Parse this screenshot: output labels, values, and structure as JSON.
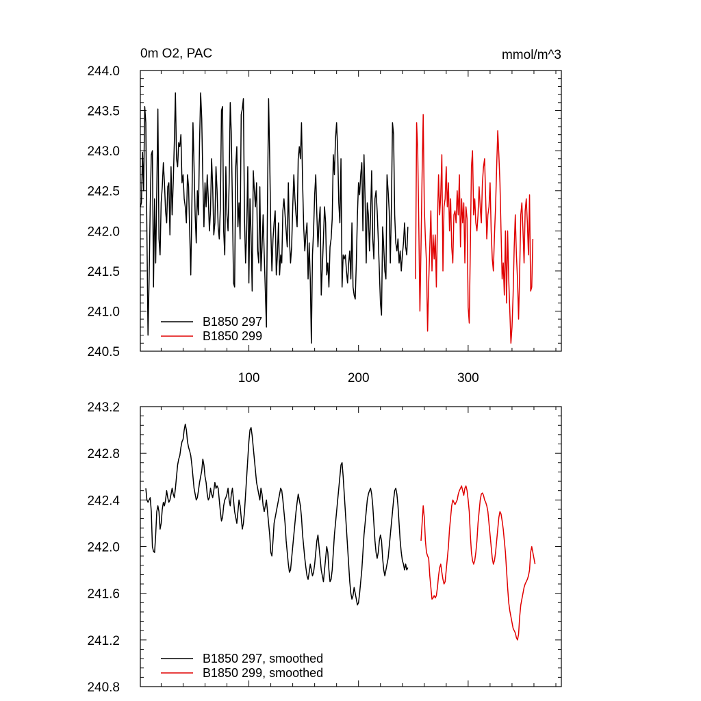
{
  "chart_data": [
    {
      "type": "line",
      "title": "0m O2, PAC",
      "units": "mmol/m^3",
      "xlim": [
        1,
        385
      ],
      "ylim": [
        240.5,
        244.0
      ],
      "yticks": [
        "240.5",
        "241.0",
        "241.5",
        "242.0",
        "242.5",
        "243.0",
        "243.5",
        "244.0"
      ],
      "xticks": [
        "100",
        "200",
        "300"
      ],
      "xtick_values": [
        100,
        200,
        300
      ],
      "legend": "bottom-left",
      "series": [
        {
          "name": "B1850 297",
          "color": "#000000",
          "x_start": 1,
          "values": [
            242.3,
            242.35,
            242.98,
            242.5,
            243.55,
            243.35,
            241.95,
            240.7,
            241.4,
            242.3,
            242.95,
            243.0,
            241.3,
            242.4,
            241.6,
            242.5,
            243.52,
            241.9,
            241.7,
            242.35,
            242.55,
            242.85,
            242.6,
            242.25,
            242.1,
            242.55,
            242.6,
            241.95,
            242.8,
            242.2,
            242.6,
            243.1,
            243.72,
            242.9,
            242.8,
            243.1,
            243.05,
            243.2,
            242.6,
            242.7,
            242.4,
            242.3,
            242.1,
            242.7,
            242.55,
            242.0,
            241.45,
            242.3,
            243.35,
            242.8,
            242.2,
            241.85,
            242.5,
            242.2,
            243.1,
            243.72,
            243.4,
            242.65,
            242.05,
            242.6,
            242.3,
            242.7,
            242.4,
            242.0,
            242.25,
            242.9,
            242.55,
            241.95,
            242.1,
            242.8,
            242.5,
            242.05,
            241.9,
            242.3,
            243.5,
            243.55,
            242.0,
            241.7,
            242.8,
            242.2,
            242.0,
            242.6,
            243.6,
            243.2,
            242.3,
            241.35,
            241.3,
            242.8,
            243.05,
            242.05,
            242.35,
            241.9,
            243.45,
            243.52,
            243.65,
            242.15,
            241.6,
            242.0,
            242.8,
            241.35,
            242.4,
            241.95,
            241.25,
            242.75,
            242.5,
            242.3,
            242.6,
            241.75,
            241.6,
            242.55,
            241.5,
            241.8,
            242.2,
            241.7,
            241.25,
            240.8,
            242.4,
            243.65,
            242.9,
            242.0,
            241.5,
            241.9,
            242.1,
            242.25,
            241.45,
            241.7,
            242.1,
            241.45,
            241.7,
            241.6,
            242.25,
            242.4,
            242.2,
            242.0,
            241.8,
            242.6,
            241.9,
            241.6,
            241.8,
            242.3,
            242.7,
            242.4,
            242.2,
            242.05,
            242.9,
            243.05,
            242.9,
            243.35,
            242.6,
            242.05,
            241.75,
            241.95,
            242.1,
            241.4,
            241.85,
            241.4,
            240.6,
            241.7,
            242.0,
            242.45,
            242.7,
            242.2,
            241.8,
            242.1,
            242.3,
            241.2,
            241.55,
            241.9,
            242.3,
            242.1,
            241.45,
            241.6,
            241.3,
            241.8,
            241.9,
            242.15,
            242.95,
            242.7,
            243.15,
            243.35,
            243.0,
            242.35,
            242.1,
            242.9,
            241.3,
            241.7,
            241.65,
            241.7,
            241.5,
            241.35,
            241.6,
            241.75,
            241.4,
            242.1,
            241.3,
            241.2,
            241.15,
            241.6,
            242.2,
            242.6,
            242.45,
            242.7,
            242.85,
            242.0,
            242.95,
            242.4,
            241.6,
            242.35,
            242.2,
            241.75,
            242.2,
            242.75,
            241.9,
            241.65,
            242.4,
            242.5,
            242.25,
            241.9,
            241.5,
            241.1,
            240.95,
            242.05,
            241.8,
            241.5,
            241.4,
            242.7,
            242.5,
            242.25,
            241.6,
            242.3,
            243.35,
            243.2,
            242.2,
            241.85,
            241.75,
            241.9,
            241.6,
            241.75,
            241.5,
            241.7,
            241.85,
            242.1,
            241.8,
            241.7,
            242.05
          ]
        },
        {
          "name": "B1850 299",
          "color": "#e00000",
          "x_start": 252,
          "values": [
            241.4,
            243.35,
            243.0,
            242.05,
            241.0,
            241.8,
            242.7,
            243.45,
            242.3,
            241.9,
            241.6,
            240.75,
            241.35,
            241.8,
            242.25,
            241.5,
            241.95,
            241.65,
            241.95,
            241.3,
            242.1,
            242.7,
            242.2,
            242.45,
            242.95,
            241.5,
            242.3,
            242.4,
            242.8,
            242.3,
            242.6,
            242.0,
            242.4,
            241.8,
            241.6,
            242.2,
            242.25,
            242.1,
            242.5,
            242.2,
            242.7,
            241.8,
            242.4,
            242.1,
            242.35,
            241.6,
            242.3,
            242.15,
            241.05,
            240.85,
            241.8,
            242.8,
            243.0,
            242.2,
            242.4,
            242.1,
            242.0,
            242.2,
            242.55,
            242.3,
            242.1,
            242.6,
            242.8,
            242.9,
            242.4,
            241.9,
            242.2,
            242.3,
            242.6,
            242.0,
            241.65,
            241.5,
            241.95,
            242.3,
            242.8,
            243.25,
            242.95,
            242.6,
            242.0,
            241.4,
            241.6,
            241.2,
            242.0,
            241.1,
            242.0,
            241.4,
            241.0,
            240.6,
            240.8,
            241.2,
            241.8,
            242.2,
            241.7,
            241.4,
            240.9,
            241.5,
            242.2,
            242.35,
            242.0,
            241.6,
            242.25,
            242.4,
            242.1,
            241.7,
            242.45,
            241.25,
            241.3,
            241.9
          ]
        }
      ]
    },
    {
      "type": "line",
      "xlim": [
        1,
        385
      ],
      "ylim": [
        240.8,
        243.2
      ],
      "yticks": [
        "240.8",
        "241.2",
        "241.6",
        "242.0",
        "242.4",
        "242.8",
        "243.2"
      ],
      "xtick_values": [
        100,
        200,
        300
      ],
      "legend": "bottom-left",
      "series": [
        {
          "name": "B1850 297, smoothed",
          "color": "#000000",
          "x_start": 6,
          "values": [
            242.5,
            242.4,
            242.38,
            242.4,
            242.42,
            242.3,
            242.0,
            241.96,
            241.95,
            242.1,
            242.3,
            242.35,
            242.3,
            242.15,
            242.2,
            242.32,
            242.38,
            242.35,
            242.4,
            242.48,
            242.42,
            242.38,
            242.4,
            242.45,
            242.5,
            242.45,
            242.42,
            242.5,
            242.6,
            242.7,
            242.75,
            242.78,
            242.85,
            242.9,
            242.92,
            243.0,
            243.05,
            243.0,
            242.9,
            242.85,
            242.82,
            242.78,
            242.7,
            242.6,
            242.5,
            242.45,
            242.4,
            242.42,
            242.48,
            242.55,
            242.6,
            242.65,
            242.75,
            242.7,
            242.6,
            242.55,
            242.45,
            242.4,
            242.42,
            242.5,
            242.45,
            242.42,
            242.48,
            242.55,
            242.5,
            242.52,
            242.5,
            242.4,
            242.3,
            242.22,
            242.25,
            242.35,
            242.4,
            242.42,
            242.45,
            242.5,
            242.4,
            242.35,
            242.45,
            242.5,
            242.4,
            242.3,
            242.25,
            242.2,
            242.3,
            242.4,
            242.35,
            242.25,
            242.15,
            242.2,
            242.3,
            242.45,
            242.6,
            242.75,
            242.9,
            243.0,
            243.02,
            242.95,
            242.85,
            242.75,
            242.65,
            242.55,
            242.5,
            242.45,
            242.4,
            242.5,
            242.45,
            242.35,
            242.3,
            242.35,
            242.4,
            242.3,
            242.2,
            242.1,
            241.95,
            241.92,
            242.05,
            242.2,
            242.25,
            242.3,
            242.35,
            242.4,
            242.45,
            242.5,
            242.48,
            242.4,
            242.3,
            242.2,
            242.05,
            241.95,
            241.85,
            241.78,
            241.8,
            241.9,
            242.0,
            242.1,
            242.2,
            242.3,
            242.38,
            242.45,
            242.4,
            242.35,
            242.25,
            242.1,
            242.0,
            241.9,
            241.82,
            241.75,
            241.72,
            241.78,
            241.85,
            241.8,
            241.75,
            241.78,
            241.85,
            241.95,
            242.05,
            242.1,
            242.0,
            241.9,
            241.8,
            241.75,
            241.7,
            241.8,
            241.9,
            242.0,
            241.95,
            241.8,
            241.7,
            241.72,
            241.8,
            241.95,
            242.1,
            242.2,
            242.3,
            242.4,
            242.5,
            242.6,
            242.7,
            242.72,
            242.6,
            242.45,
            242.3,
            242.15,
            242.0,
            241.85,
            241.7,
            241.6,
            241.55,
            241.58,
            241.65,
            241.6,
            241.55,
            241.5,
            241.52,
            241.6,
            241.7,
            241.8,
            241.95,
            242.1,
            242.2,
            242.3,
            242.4,
            242.45,
            242.48,
            242.5,
            242.45,
            242.35,
            242.2,
            242.05,
            241.95,
            241.9,
            241.95,
            242.05,
            242.1,
            242.05,
            241.9,
            241.8,
            241.75,
            241.8,
            241.85,
            241.9,
            242.0,
            242.1,
            242.2,
            242.3,
            242.4,
            242.48,
            242.5,
            242.45,
            242.35,
            242.2,
            242.05,
            241.95,
            241.88,
            241.85,
            241.8,
            241.85,
            241.8,
            241.82
          ]
        },
        {
          "name": "B1850 299, smoothed",
          "color": "#e00000",
          "x_start": 257,
          "values": [
            242.05,
            242.2,
            242.35,
            242.25,
            242.05,
            241.95,
            241.92,
            241.9,
            241.75,
            241.65,
            241.55,
            241.56,
            241.58,
            241.56,
            241.58,
            241.65,
            241.75,
            241.82,
            241.85,
            241.78,
            241.72,
            241.68,
            241.7,
            241.8,
            241.9,
            242.0,
            242.15,
            242.25,
            242.35,
            242.4,
            242.38,
            242.36,
            242.38,
            242.4,
            242.45,
            242.48,
            242.5,
            242.52,
            242.48,
            242.44,
            242.5,
            242.52,
            242.48,
            242.4,
            242.3,
            242.1,
            241.95,
            241.88,
            241.85,
            241.88,
            241.95,
            242.05,
            242.2,
            242.3,
            242.4,
            242.45,
            242.46,
            242.44,
            242.4,
            242.38,
            242.35,
            242.3,
            242.2,
            242.1,
            242.0,
            241.9,
            241.85,
            241.88,
            241.95,
            242.05,
            242.15,
            242.25,
            242.3,
            242.28,
            242.22,
            242.15,
            242.05,
            241.95,
            241.8,
            241.65,
            241.52,
            241.45,
            241.4,
            241.35,
            241.3,
            241.28,
            241.26,
            241.22,
            241.2,
            241.25,
            241.4,
            241.5,
            241.55,
            241.6,
            241.65,
            241.68,
            241.7,
            241.72,
            241.75,
            241.8,
            241.95,
            242.0,
            241.95,
            241.9,
            241.85
          ]
        }
      ]
    }
  ]
}
